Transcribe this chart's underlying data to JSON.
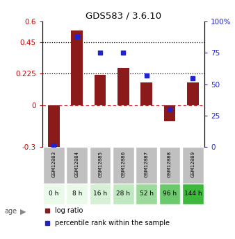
{
  "title": "GDS583 / 3.6.10",
  "samples": [
    "GSM12883",
    "GSM12884",
    "GSM12885",
    "GSM12886",
    "GSM12887",
    "GSM12888",
    "GSM12889"
  ],
  "ages": [
    "0 h",
    "8 h",
    "16 h",
    "28 h",
    "52 h",
    "96 h",
    "144 h"
  ],
  "age_colors": [
    "#eafaea",
    "#eafaea",
    "#d6f0d6",
    "#c0e8c0",
    "#9cda9c",
    "#6cc86c",
    "#3db83d"
  ],
  "log_ratio": [
    -0.38,
    0.535,
    0.215,
    0.265,
    0.165,
    -0.115,
    0.165
  ],
  "percentile_rank": [
    1,
    88,
    75,
    75,
    57,
    30,
    55
  ],
  "bar_color": "#8b1a1a",
  "dot_color": "#2222cc",
  "ylim_left": [
    -0.3,
    0.6
  ],
  "ylim_right": [
    0,
    100
  ],
  "yticks_left": [
    -0.3,
    0,
    0.225,
    0.45,
    0.6
  ],
  "yticks_right": [
    0,
    25,
    50,
    75,
    100
  ],
  "ytick_labels_left": [
    "-0.3",
    "0",
    "0.225",
    "0.45",
    "0.6"
  ],
  "ytick_labels_right": [
    "0",
    "25",
    "50",
    "75",
    "100%"
  ],
  "hlines": [
    0.225,
    0.45
  ],
  "zero_line_y": 0,
  "bg_color": "#ffffff",
  "sample_bg": "#c0c0c0",
  "legend_log_ratio": "log ratio",
  "legend_percentile": "percentile rank within the sample"
}
